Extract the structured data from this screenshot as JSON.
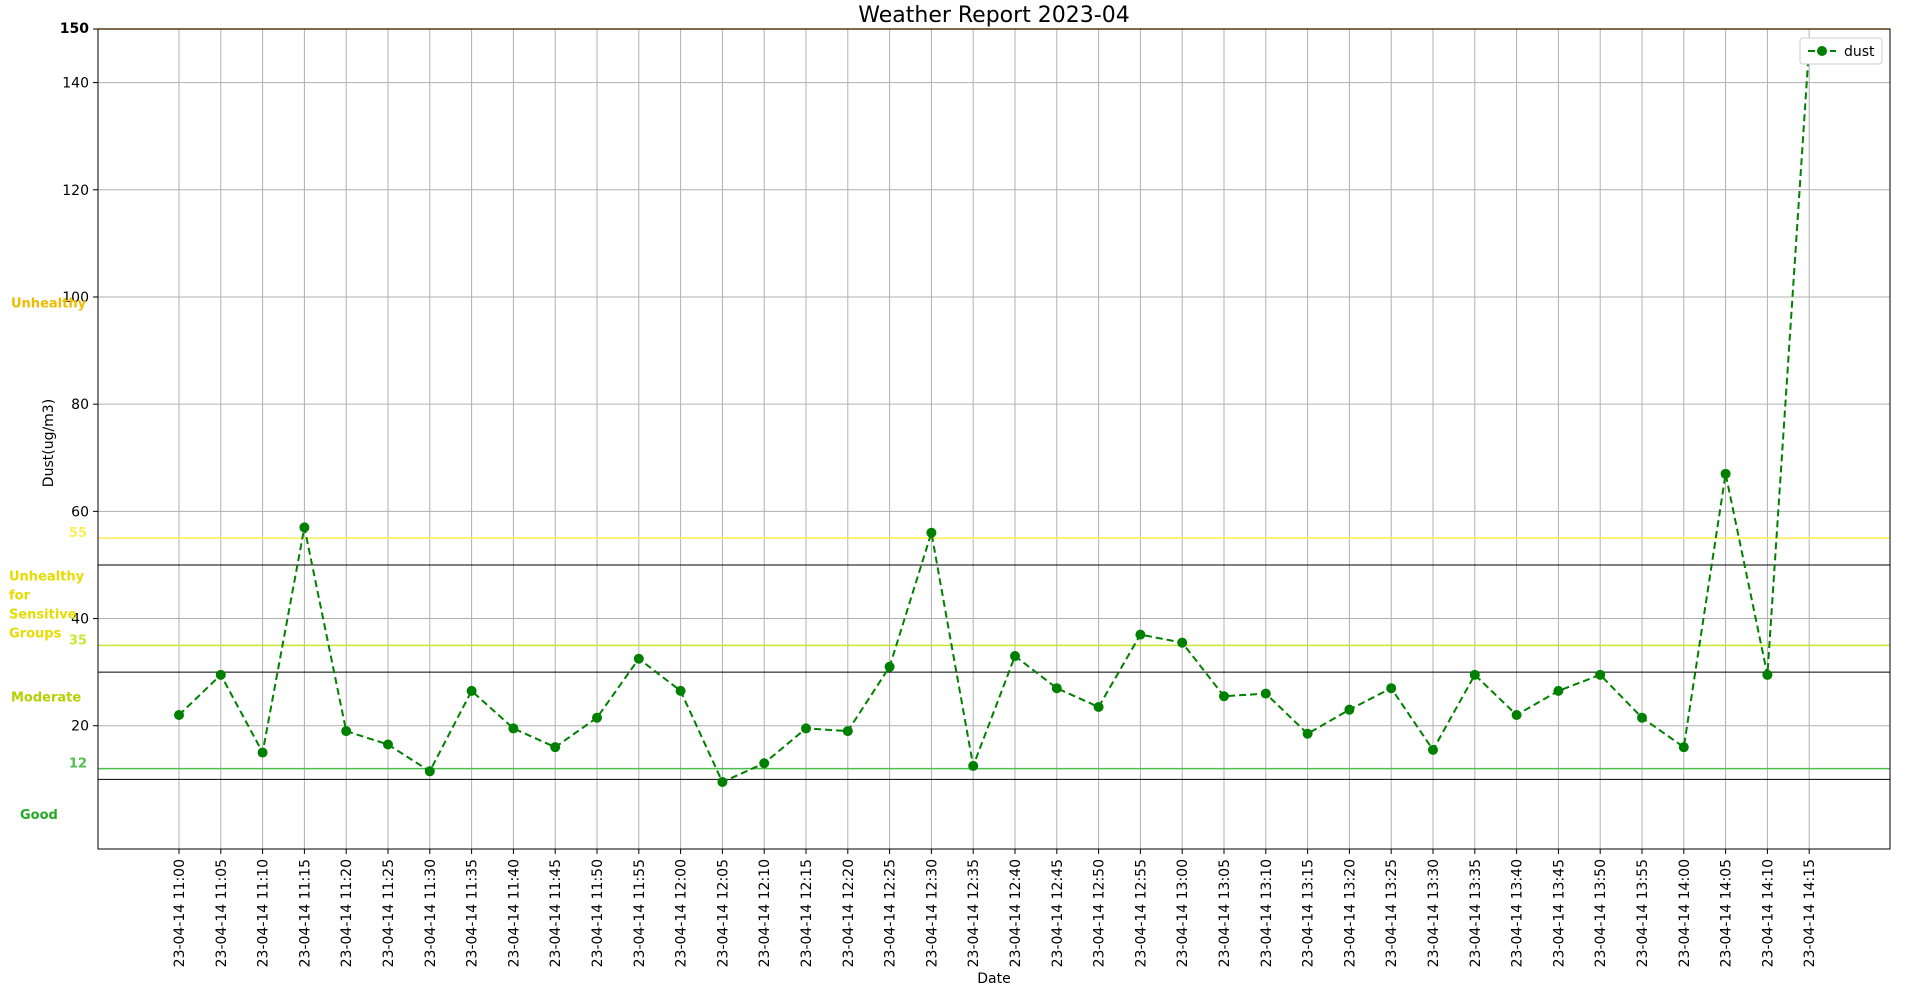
{
  "chart_data": {
    "type": "line",
    "title": "Weather Report 2023-04",
    "xlabel": "Date",
    "ylabel": "Dust(ug/m3)",
    "ylim": [
      -3,
      150
    ],
    "yticks": [
      20,
      40,
      60,
      80,
      100,
      120,
      140,
      150
    ],
    "grid": true,
    "legend": {
      "position": "top-right",
      "entries": [
        "dust"
      ]
    },
    "series": [
      {
        "name": "dust",
        "color": "#008000",
        "line_style": "dashed",
        "marker": "circle",
        "values": [
          22,
          29.5,
          15,
          57,
          19,
          16.5,
          11.5,
          26.5,
          19.5,
          16,
          21.5,
          32.5,
          26.5,
          9.5,
          13,
          19.5,
          19,
          31,
          56,
          12.5,
          33,
          27,
          23.5,
          37,
          35.5,
          25.5,
          26,
          18.5,
          23,
          27,
          15.5,
          29.5,
          22,
          26.5,
          29.5,
          21.5,
          16,
          67,
          29.5,
          147
        ]
      }
    ],
    "categories": [
      "23-04-14 11:00",
      "23-04-14 11:05",
      "23-04-14 11:10",
      "23-04-14 11:15",
      "23-04-14 11:20",
      "23-04-14 11:25",
      "23-04-14 11:30",
      "23-04-14 11:35",
      "23-04-14 11:40",
      "23-04-14 11:45",
      "23-04-14 11:50",
      "23-04-14 11:55",
      "23-04-14 12:00",
      "23-04-14 12:05",
      "23-04-14 12:10",
      "23-04-14 12:15",
      "23-04-14 12:20",
      "23-04-14 12:25",
      "23-04-14 12:30",
      "23-04-14 12:35",
      "23-04-14 12:40",
      "23-04-14 12:45",
      "23-04-14 12:50",
      "23-04-14 12:55",
      "23-04-14 13:00",
      "23-04-14 13:05",
      "23-04-14 13:10",
      "23-04-14 13:15",
      "23-04-14 13:20",
      "23-04-14 13:25",
      "23-04-14 13:30",
      "23-04-14 13:35",
      "23-04-14 13:40",
      "23-04-14 13:45",
      "23-04-14 13:50",
      "23-04-14 13:55",
      "23-04-14 14:00",
      "23-04-14 14:05",
      "23-04-14 14:10",
      "23-04-14 14:15"
    ],
    "threshold_lines": [
      {
        "value": 12,
        "color": "#4cbf4c",
        "label": "12"
      },
      {
        "value": 35,
        "color": "#c8e632",
        "label": "35"
      },
      {
        "value": 55,
        "color": "#ffee55",
        "label": "55"
      },
      {
        "value": 150,
        "color": "#ffaa33",
        "label": "150"
      }
    ],
    "category_boundaries": [
      10,
      30,
      50
    ],
    "band_labels": [
      {
        "text": [
          "Good"
        ],
        "y": 3.5,
        "color": "#22aa22"
      },
      {
        "text": [
          "Moderate"
        ],
        "y": 25.5,
        "color": "#b5d000"
      },
      {
        "text": [
          "Unhealthy",
          "for",
          "Sensitive",
          "Groups"
        ],
        "y": 48,
        "color": "#e6dc00"
      },
      {
        "text": [
          "Unhealthy"
        ],
        "y": 99,
        "color": "#eebb00"
      }
    ]
  }
}
